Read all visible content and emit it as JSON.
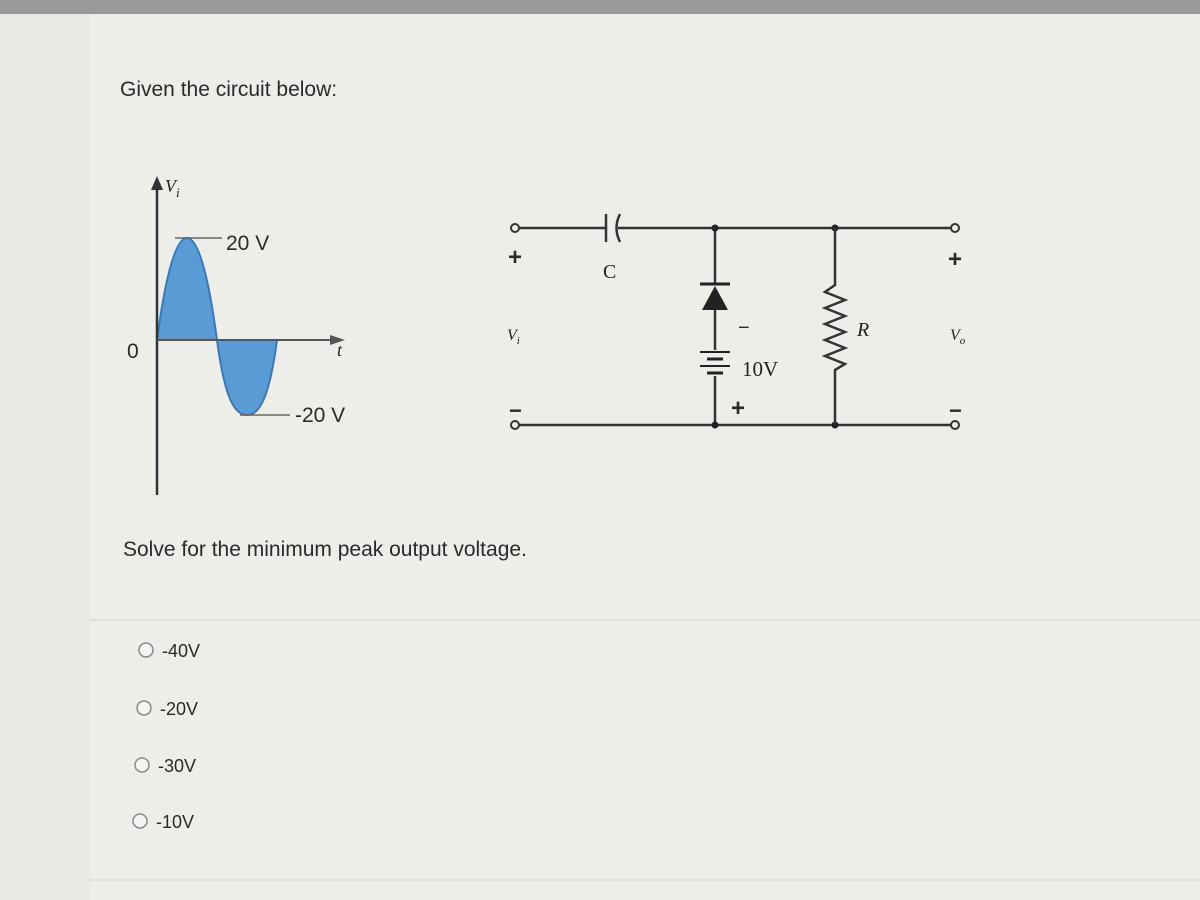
{
  "prompt": "Given the circuit below:",
  "waveform": {
    "axis_symbol": "V",
    "axis_subscript": "i",
    "peak_label": "20 V",
    "origin_label": "0",
    "time_label": "t",
    "trough_label": "-20 V"
  },
  "circuit": {
    "input_plus": "+",
    "input_symbol": "V",
    "input_subscript": "i",
    "input_minus": "−",
    "capacitor": "C",
    "battery_minus": "−",
    "battery_label": "10V",
    "battery_plus": "+",
    "resistor": "R",
    "output_plus": "+",
    "output_symbol": "V",
    "output_subscript": "o",
    "output_minus": "−"
  },
  "question": "Solve for the minimum peak output voltage.",
  "options": [
    "-40V",
    "-20V",
    "-30V",
    "-10V"
  ]
}
